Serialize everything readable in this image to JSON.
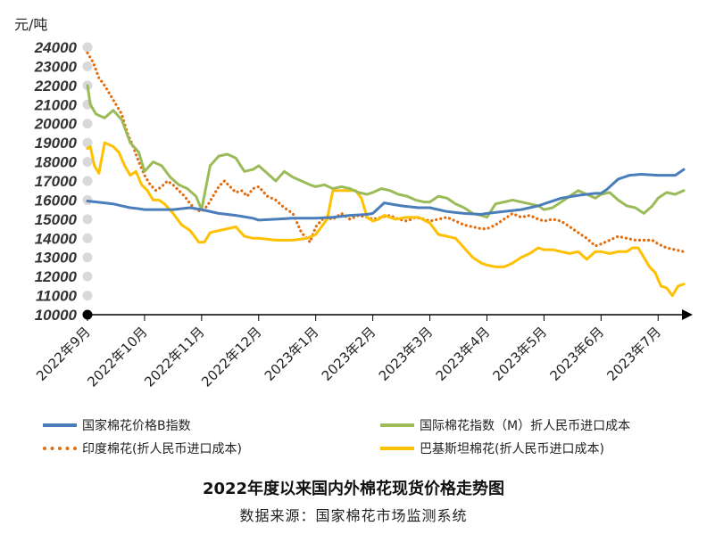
{
  "chart_data": {
    "type": "line",
    "title": "2022年度以来国内外棉花现货价格走势图",
    "source": "数据来源：国家棉花市场监测系统",
    "yunit": "元/吨",
    "ylim": [
      10000,
      24000
    ],
    "yticks": [
      10000,
      11000,
      12000,
      13000,
      14000,
      15000,
      16000,
      17000,
      18000,
      19000,
      20000,
      21000,
      22000,
      23000,
      24000
    ],
    "xlabels": [
      "2022年9月",
      "2022年10月",
      "2022年11月",
      "2022年12月",
      "2023年1月",
      "2023年2月",
      "2023年3月",
      "2023年4月",
      "2023年5月",
      "2023年6月",
      "2023年7月"
    ],
    "x_positions": [
      0,
      1,
      2,
      3,
      4,
      5,
      6,
      7,
      8,
      9,
      10
    ],
    "xlim": [
      0,
      10.45
    ],
    "grid": false,
    "legend_position": "bottom",
    "series": [
      {
        "name": "国家棉花价格B指数",
        "color": "#4a7ebb",
        "style": "solid",
        "x": [
          0,
          0.3,
          0.45,
          0.6,
          0.75,
          0.9,
          1.0,
          1.5,
          1.8,
          2.0,
          2.3,
          2.6,
          2.9,
          3.0,
          3.3,
          3.6,
          3.9,
          4.0,
          4.3,
          4.6,
          4.9,
          5.0,
          5.2,
          5.5,
          5.8,
          6.0,
          6.3,
          6.6,
          6.9,
          7.0,
          7.3,
          7.6,
          7.9,
          8.0,
          8.3,
          8.6,
          8.9,
          9.0,
          9.1,
          9.3,
          9.5,
          9.7,
          10.0,
          10.3,
          10.45
        ],
        "values": [
          15950,
          15850,
          15800,
          15700,
          15600,
          15550,
          15500,
          15500,
          15600,
          15500,
          15300,
          15200,
          15050,
          14950,
          15000,
          15050,
          15050,
          15050,
          15100,
          15200,
          15250,
          15300,
          15850,
          15700,
          15600,
          15600,
          15400,
          15300,
          15250,
          15300,
          15400,
          15500,
          15700,
          15800,
          16100,
          16250,
          16350,
          16350,
          16550,
          17100,
          17300,
          17350,
          17300,
          17300,
          17600
        ]
      },
      {
        "name": "国际棉花指数（M）折人民币进口成本",
        "color": "#9bbb59",
        "style": "solid",
        "x": [
          0,
          0.05,
          0.15,
          0.3,
          0.45,
          0.6,
          0.75,
          0.9,
          1.0,
          1.15,
          1.3,
          1.45,
          1.6,
          1.75,
          1.9,
          2.0,
          2.15,
          2.3,
          2.45,
          2.6,
          2.75,
          2.9,
          3.0,
          3.15,
          3.3,
          3.45,
          3.6,
          3.75,
          3.9,
          4.0,
          4.15,
          4.3,
          4.45,
          4.6,
          4.75,
          4.9,
          5.0,
          5.15,
          5.3,
          5.45,
          5.6,
          5.75,
          5.9,
          6.0,
          6.15,
          6.3,
          6.45,
          6.6,
          6.75,
          6.9,
          7.0,
          7.15,
          7.3,
          7.45,
          7.6,
          7.75,
          7.9,
          8.0,
          8.15,
          8.3,
          8.45,
          8.6,
          8.75,
          8.9,
          9.0,
          9.15,
          9.3,
          9.45,
          9.6,
          9.75,
          9.9,
          10.0,
          10.15,
          10.3,
          10.45
        ],
        "values": [
          22000,
          21000,
          20500,
          20300,
          20700,
          20200,
          19000,
          18500,
          17500,
          18000,
          17800,
          17200,
          16800,
          16600,
          16200,
          15500,
          17800,
          18300,
          18400,
          18200,
          17500,
          17600,
          17800,
          17400,
          17000,
          17500,
          17200,
          17000,
          16800,
          16700,
          16800,
          16600,
          16700,
          16600,
          16400,
          16300,
          16400,
          16600,
          16500,
          16300,
          16200,
          16000,
          15900,
          15900,
          16200,
          16100,
          15800,
          15600,
          15300,
          15200,
          15100,
          15800,
          15900,
          16000,
          15900,
          15800,
          15700,
          15500,
          15600,
          15900,
          16200,
          16500,
          16300,
          16100,
          16300,
          16400,
          16000,
          15700,
          15600,
          15300,
          15700,
          16100,
          16400,
          16300,
          16500
        ]
      },
      {
        "name": "印度棉花(折人民币进口成本)",
        "color": "#e46c0a",
        "style": "dotted",
        "x": [
          0,
          0.1,
          0.2,
          0.3,
          0.4,
          0.5,
          0.6,
          0.7,
          0.8,
          0.9,
          1.0,
          1.1,
          1.2,
          1.3,
          1.4,
          1.5,
          1.6,
          1.7,
          1.8,
          1.9,
          2.0,
          2.1,
          2.2,
          2.3,
          2.4,
          2.5,
          2.6,
          2.7,
          2.8,
          2.9,
          3.0,
          3.15,
          3.3,
          3.45,
          3.6,
          3.75,
          3.9,
          4.0,
          4.15,
          4.3,
          4.45,
          4.6,
          4.75,
          4.9,
          5.0,
          5.15,
          5.3,
          5.45,
          5.6,
          5.75,
          5.9,
          6.0,
          6.15,
          6.3,
          6.45,
          6.6,
          6.75,
          6.9,
          7.0,
          7.15,
          7.3,
          7.45,
          7.6,
          7.75,
          7.9,
          8.0,
          8.15,
          8.3,
          8.45,
          8.6,
          8.75,
          8.9,
          9.0,
          9.15,
          9.3,
          9.45,
          9.6,
          9.75,
          9.9,
          10.0,
          10.15,
          10.3,
          10.45
        ],
        "values": [
          23700,
          23200,
          22400,
          22000,
          21500,
          21000,
          20500,
          19500,
          18800,
          18000,
          17300,
          16800,
          16500,
          16700,
          17000,
          16800,
          16500,
          16200,
          15800,
          15500,
          15400,
          15700,
          16200,
          16700,
          17000,
          16700,
          16400,
          16500,
          16200,
          16600,
          16700,
          16200,
          16000,
          15600,
          15300,
          14300,
          13800,
          14600,
          15100,
          15000,
          15300,
          15000,
          15200,
          15100,
          15000,
          15100,
          15200,
          15000,
          14900,
          15100,
          15000,
          14900,
          15000,
          15100,
          14900,
          14700,
          14600,
          14500,
          14500,
          14700,
          15000,
          15300,
          15100,
          15200,
          15000,
          14900,
          15000,
          14900,
          14600,
          14300,
          14000,
          13600,
          13700,
          13900,
          14100,
          14000,
          13900,
          13900,
          13900,
          13700,
          13500,
          13400,
          13300
        ]
      },
      {
        "name": "巴基斯坦棉花(折人民币进口成本)",
        "color": "#ffc000",
        "style": "solid",
        "x": [
          0,
          0.05,
          0.12,
          0.2,
          0.3,
          0.45,
          0.55,
          0.65,
          0.75,
          0.85,
          0.95,
          1.05,
          1.15,
          1.25,
          1.35,
          1.5,
          1.65,
          1.8,
          1.95,
          2.05,
          2.15,
          2.3,
          2.45,
          2.6,
          2.75,
          2.9,
          3.0,
          3.3,
          3.6,
          3.85,
          4.0,
          4.1,
          4.2,
          4.3,
          4.5,
          4.7,
          4.8,
          4.9,
          5.0,
          5.1,
          5.2,
          5.4,
          5.6,
          5.8,
          6.0,
          6.15,
          6.3,
          6.45,
          6.6,
          6.75,
          6.9,
          7.0,
          7.15,
          7.3,
          7.45,
          7.6,
          7.75,
          7.9,
          8.0,
          8.15,
          8.3,
          8.45,
          8.6,
          8.75,
          8.9,
          9.0,
          9.15,
          9.3,
          9.45,
          9.55,
          9.65,
          9.75,
          9.85,
          9.95,
          10.05,
          10.15,
          10.25,
          10.35,
          10.45
        ],
        "values": [
          18700,
          18800,
          17800,
          17400,
          19000,
          18800,
          18500,
          17800,
          17300,
          17500,
          16800,
          16500,
          16000,
          16000,
          15800,
          15300,
          14700,
          14400,
          13800,
          13800,
          14300,
          14400,
          14500,
          14600,
          14100,
          14000,
          14000,
          13900,
          13900,
          14000,
          14200,
          14600,
          15000,
          16500,
          16500,
          16500,
          16100,
          15100,
          14900,
          15000,
          15200,
          15000,
          15100,
          15100,
          14800,
          14200,
          14100,
          14000,
          13500,
          13000,
          12700,
          12600,
          12500,
          12500,
          12700,
          13000,
          13200,
          13500,
          13400,
          13400,
          13300,
          13200,
          13300,
          12900,
          13300,
          13300,
          13200,
          13300,
          13300,
          13500,
          13500,
          13000,
          12500,
          12200,
          11500,
          11400,
          11000,
          11500,
          11600
        ]
      }
    ]
  }
}
